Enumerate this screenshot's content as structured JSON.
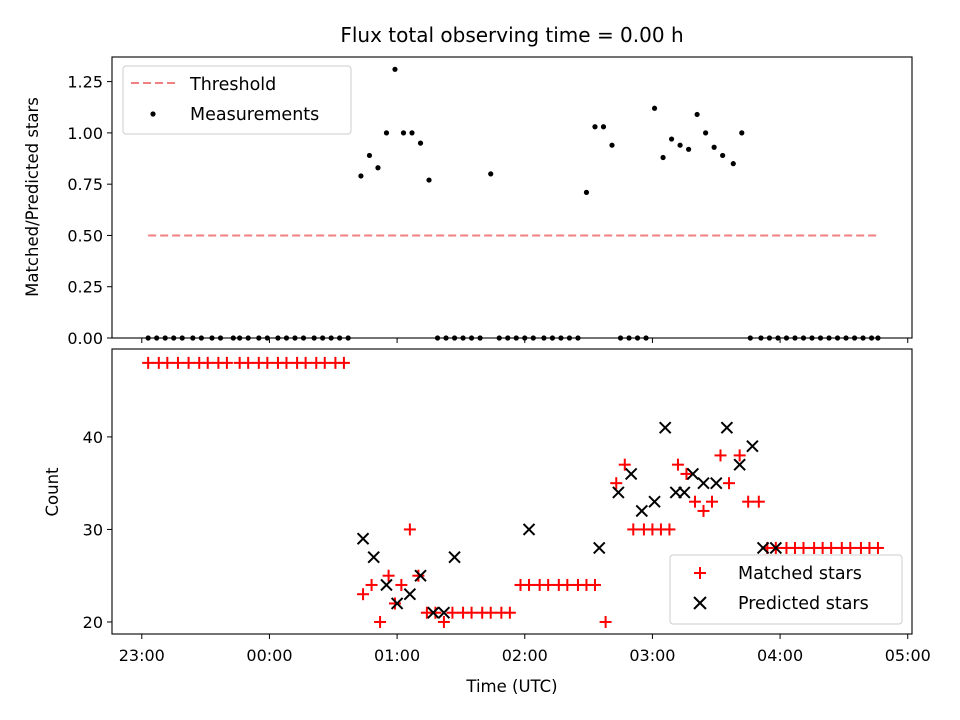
{
  "chart_data": [
    {
      "type": "scatter",
      "title": "Flux total observing time = 0.00 h",
      "xlabel": "",
      "ylabel": "Matched/Predicted stars",
      "xlim": [
        "22:46",
        "05:02"
      ],
      "ylim": [
        0.0,
        1.37
      ],
      "yticks": [
        "0.00",
        "0.25",
        "0.50",
        "0.75",
        "1.00",
        "1.25"
      ],
      "ytick_values": [
        0,
        0.25,
        0.5,
        0.75,
        1.0,
        1.25
      ],
      "legend_position": "upper-left",
      "colors": {
        "threshold": "#f08080",
        "measurements": "#000000"
      },
      "series": [
        {
          "name": "Threshold",
          "style": "dashed-line",
          "x": [
            "23:03",
            "04:46"
          ],
          "y": [
            0.5,
            0.5
          ]
        },
        {
          "name": "Measurements",
          "style": "dots",
          "x": [
            "23:03",
            "23:07",
            "23:11",
            "23:15",
            "23:19",
            "23:24",
            "23:28",
            "23:33",
            "23:37",
            "23:43",
            "23:46",
            "23:50",
            "23:55",
            "23:59",
            "00:04",
            "00:08",
            "00:12",
            "00:16",
            "00:21",
            "00:25",
            "00:29",
            "00:33",
            "00:37",
            "00:43",
            "00:47",
            "00:51",
            "00:55",
            "00:59",
            "01:03",
            "01:07",
            "01:11",
            "01:15",
            "01:19",
            "01:23",
            "01:27",
            "01:31",
            "01:35",
            "01:39",
            "01:44",
            "01:48",
            "01:52",
            "01:56",
            "02:00",
            "02:04",
            "02:09",
            "02:13",
            "02:17",
            "02:21",
            "02:25",
            "02:29",
            "02:33",
            "02:37",
            "02:41",
            "02:45",
            "02:49",
            "02:53",
            "02:57",
            "03:01",
            "03:05",
            "03:09",
            "03:13",
            "03:17",
            "03:21",
            "03:25",
            "03:29",
            "03:33",
            "03:38",
            "03:42",
            "03:46",
            "03:51",
            "03:55",
            "03:59",
            "04:03",
            "04:07",
            "04:11",
            "04:15",
            "04:19",
            "04:23",
            "04:27",
            "04:31",
            "04:35",
            "04:39",
            "04:43",
            "04:46"
          ],
          "y": [
            0,
            0,
            0,
            0,
            0,
            0,
            0,
            0,
            0,
            0,
            0,
            0,
            0,
            0,
            0,
            0,
            0,
            0,
            0,
            0,
            0,
            0,
            0,
            0.79,
            0.89,
            0.83,
            1.0,
            1.31,
            1.0,
            1.0,
            0.95,
            0.77,
            0,
            0,
            0,
            0,
            0,
            0,
            0.8,
            0,
            0,
            0,
            0,
            0,
            0,
            0,
            0,
            0,
            0,
            0.71,
            1.03,
            1.03,
            0.94,
            0,
            0,
            0,
            0,
            1.12,
            0.88,
            0.97,
            0.94,
            0.92,
            1.09,
            1.0,
            0.93,
            0.89,
            0.85,
            1.0,
            0,
            0,
            0,
            0,
            0,
            0,
            0,
            0,
            0,
            0,
            0,
            0,
            0,
            0,
            0,
            0
          ]
        }
      ]
    },
    {
      "type": "scatter",
      "title": "",
      "xlabel": "Time (UTC)",
      "ylabel": "Count",
      "xlim": [
        "22:46",
        "05:02"
      ],
      "xticks": [
        "23:00",
        "00:00",
        "01:00",
        "02:00",
        "03:00",
        "04:00",
        "05:00"
      ],
      "ylim": [
        18.7,
        49.5
      ],
      "yticks": [
        "20",
        "30",
        "40"
      ],
      "ytick_values": [
        20,
        30,
        40
      ],
      "legend_position": "lower-right",
      "colors": {
        "matched": "#ff0000",
        "predicted": "#000000"
      },
      "series": [
        {
          "name": "Matched stars",
          "marker": "plus",
          "x": [
            "23:03",
            "23:08",
            "23:12",
            "23:17",
            "23:22",
            "23:27",
            "23:31",
            "23:36",
            "23:40",
            "23:46",
            "23:50",
            "23:55",
            "23:59",
            "00:04",
            "00:08",
            "00:13",
            "00:17",
            "00:22",
            "00:26",
            "00:31",
            "00:35",
            "00:44",
            "00:48",
            "00:52",
            "00:56",
            "00:59",
            "01:02",
            "01:06",
            "01:10",
            "01:14",
            "01:18",
            "01:22",
            "01:26",
            "01:31",
            "01:35",
            "01:40",
            "01:44",
            "01:49",
            "01:53",
            "01:58",
            "02:02",
            "02:07",
            "02:11",
            "02:16",
            "02:20",
            "02:25",
            "02:29",
            "02:33",
            "02:38",
            "02:43",
            "02:47",
            "02:51",
            "02:56",
            "03:00",
            "03:04",
            "03:08",
            "03:12",
            "03:16",
            "03:20",
            "03:24",
            "03:28",
            "03:32",
            "03:36",
            "03:41",
            "03:45",
            "03:50",
            "03:54",
            "03:58",
            "04:03",
            "04:07",
            "04:11",
            "04:16",
            "04:20",
            "04:24",
            "04:29",
            "04:33",
            "04:38",
            "04:42",
            "04:46"
          ],
          "y": [
            48,
            48,
            48,
            48,
            48,
            48,
            48,
            48,
            48,
            48,
            48,
            48,
            48,
            48,
            48,
            48,
            48,
            48,
            48,
            48,
            48,
            23,
            24,
            20,
            25,
            22,
            24,
            30,
            25,
            21,
            21,
            20,
            21,
            21,
            21,
            21,
            21,
            21,
            21,
            24,
            24,
            24,
            24,
            24,
            24,
            24,
            24,
            24,
            20,
            35,
            37,
            30,
            30,
            30,
            30,
            30,
            37,
            36,
            33,
            32,
            33,
            38,
            35,
            38,
            33,
            33,
            28,
            28,
            28,
            28,
            28,
            28,
            28,
            28,
            28,
            28,
            28,
            28,
            28
          ]
        },
        {
          "name": "Predicted stars",
          "marker": "x",
          "x": [
            "00:44",
            "00:49",
            "00:55",
            "01:00",
            "01:06",
            "01:11",
            "01:17",
            "01:22",
            "01:27",
            "02:02",
            "02:35",
            "02:44",
            "02:50",
            "02:55",
            "03:01",
            "03:06",
            "03:11",
            "03:15",
            "03:19",
            "03:24",
            "03:30",
            "03:35",
            "03:41",
            "03:47",
            "03:52",
            "03:58"
          ],
          "y": [
            29,
            27,
            24,
            22,
            23,
            25,
            21,
            21,
            27,
            30,
            28,
            34,
            36,
            32,
            33,
            41,
            34,
            34,
            36,
            35,
            35,
            41,
            37,
            39,
            28,
            28
          ]
        }
      ]
    }
  ]
}
